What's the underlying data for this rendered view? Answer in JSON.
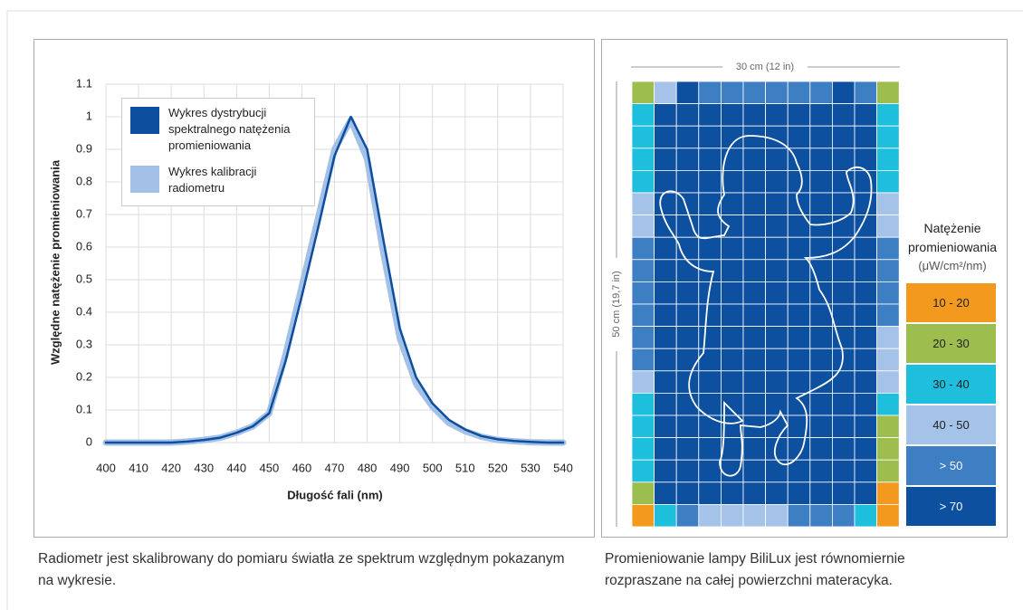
{
  "chart_data": {
    "type": "line",
    "x_label": "Długość fali (nm)",
    "y_label": "Względne natężenie promieniowania",
    "x": [
      400,
      405,
      410,
      415,
      420,
      425,
      430,
      435,
      440,
      445,
      450,
      455,
      460,
      465,
      470,
      475,
      480,
      485,
      490,
      495,
      500,
      505,
      510,
      515,
      520,
      525,
      530,
      535,
      540
    ],
    "series": [
      {
        "name": "Wykres dystrybucji spektralnego natężenia promieniowania",
        "color": "#0d4f9e",
        "values": [
          0,
          0,
          0,
          0,
          0,
          0.003,
          0.008,
          0.015,
          0.03,
          0.05,
          0.09,
          0.25,
          0.45,
          0.66,
          0.88,
          1.0,
          0.9,
          0.62,
          0.35,
          0.2,
          0.12,
          0.07,
          0.04,
          0.02,
          0.01,
          0.005,
          0.002,
          0,
          0
        ]
      },
      {
        "name": "Wykres kalibracji radiometru",
        "color": "#a3c1e6",
        "values": [
          0,
          0,
          0,
          0,
          0,
          0.003,
          0.008,
          0.015,
          0.03,
          0.05,
          0.09,
          0.27,
          0.48,
          0.69,
          0.9,
          0.99,
          0.87,
          0.58,
          0.32,
          0.18,
          0.11,
          0.06,
          0.035,
          0.018,
          0.008,
          0.004,
          0.001,
          0,
          0
        ]
      }
    ],
    "xlim": [
      400,
      540
    ],
    "ylim": [
      0,
      1.1
    ],
    "xticks": [
      400,
      410,
      420,
      430,
      440,
      450,
      460,
      470,
      480,
      490,
      500,
      510,
      520,
      530,
      540
    ],
    "yticks": [
      0,
      0.1,
      0.2,
      0.3,
      0.4,
      0.5,
      0.6,
      0.7,
      0.8,
      0.9,
      1,
      1.1
    ],
    "grid": true
  },
  "left_caption": "Radiometr jest skalibrowany do pomiaru światła ze spektrum względnym pokazanym na wykresie.",
  "right_panel": {
    "width_label": "30 cm (12 in)",
    "height_label": "50 cm (19,7 in)",
    "legend_title": "Natężenie promieniowania",
    "legend_unit": "(μW/cm²/nm)",
    "levels": [
      {
        "label": "10 - 20",
        "color": "#f39a1e"
      },
      {
        "label": "20 - 30",
        "color": "#9dbd4f"
      },
      {
        "label": "30 - 40",
        "color": "#1ebfdc"
      },
      {
        "label": "40 - 50",
        "color": "#a5c3e8"
      },
      {
        "label": "> 50",
        "color": "#3e7fc4"
      },
      {
        "label": "> 70",
        "color": "#0d509f"
      }
    ],
    "grid": [
      [
        1,
        3,
        5,
        4,
        4,
        4,
        4,
        4,
        4,
        5,
        4,
        1
      ],
      [
        2,
        5,
        5,
        5,
        5,
        5,
        5,
        5,
        5,
        5,
        5,
        2
      ],
      [
        2,
        5,
        5,
        5,
        5,
        5,
        5,
        5,
        5,
        5,
        5,
        2
      ],
      [
        2,
        5,
        5,
        5,
        5,
        5,
        5,
        5,
        5,
        5,
        5,
        2
      ],
      [
        2,
        5,
        5,
        5,
        5,
        5,
        5,
        5,
        5,
        5,
        5,
        2
      ],
      [
        3,
        5,
        5,
        5,
        5,
        5,
        5,
        5,
        5,
        5,
        5,
        3
      ],
      [
        3,
        5,
        5,
        5,
        5,
        5,
        5,
        5,
        5,
        5,
        5,
        3
      ],
      [
        4,
        5,
        5,
        5,
        5,
        5,
        5,
        5,
        5,
        5,
        5,
        4
      ],
      [
        4,
        5,
        5,
        5,
        5,
        5,
        5,
        5,
        5,
        5,
        5,
        4
      ],
      [
        4,
        5,
        5,
        5,
        5,
        5,
        5,
        5,
        5,
        5,
        5,
        4
      ],
      [
        4,
        5,
        5,
        5,
        5,
        5,
        5,
        5,
        5,
        5,
        5,
        4
      ],
      [
        4,
        5,
        5,
        5,
        5,
        5,
        5,
        5,
        5,
        5,
        5,
        3
      ],
      [
        4,
        5,
        5,
        5,
        5,
        5,
        5,
        5,
        5,
        5,
        5,
        3
      ],
      [
        3,
        5,
        5,
        5,
        5,
        5,
        5,
        5,
        5,
        5,
        5,
        3
      ],
      [
        2,
        5,
        5,
        5,
        5,
        5,
        5,
        5,
        5,
        5,
        5,
        2
      ],
      [
        2,
        5,
        5,
        5,
        5,
        5,
        5,
        5,
        5,
        5,
        5,
        1
      ],
      [
        2,
        5,
        5,
        5,
        5,
        5,
        5,
        5,
        5,
        5,
        5,
        1
      ],
      [
        2,
        5,
        5,
        5,
        5,
        5,
        5,
        5,
        5,
        5,
        5,
        1
      ],
      [
        1,
        5,
        5,
        5,
        5,
        5,
        5,
        5,
        5,
        5,
        5,
        0
      ],
      [
        0,
        2,
        4,
        3,
        3,
        3,
        3,
        4,
        4,
        4,
        2,
        0
      ]
    ]
  },
  "right_caption": "Promieniowanie lampy BiliLux jest równomiernie rozpraszane na całej powierzchni materacyka."
}
